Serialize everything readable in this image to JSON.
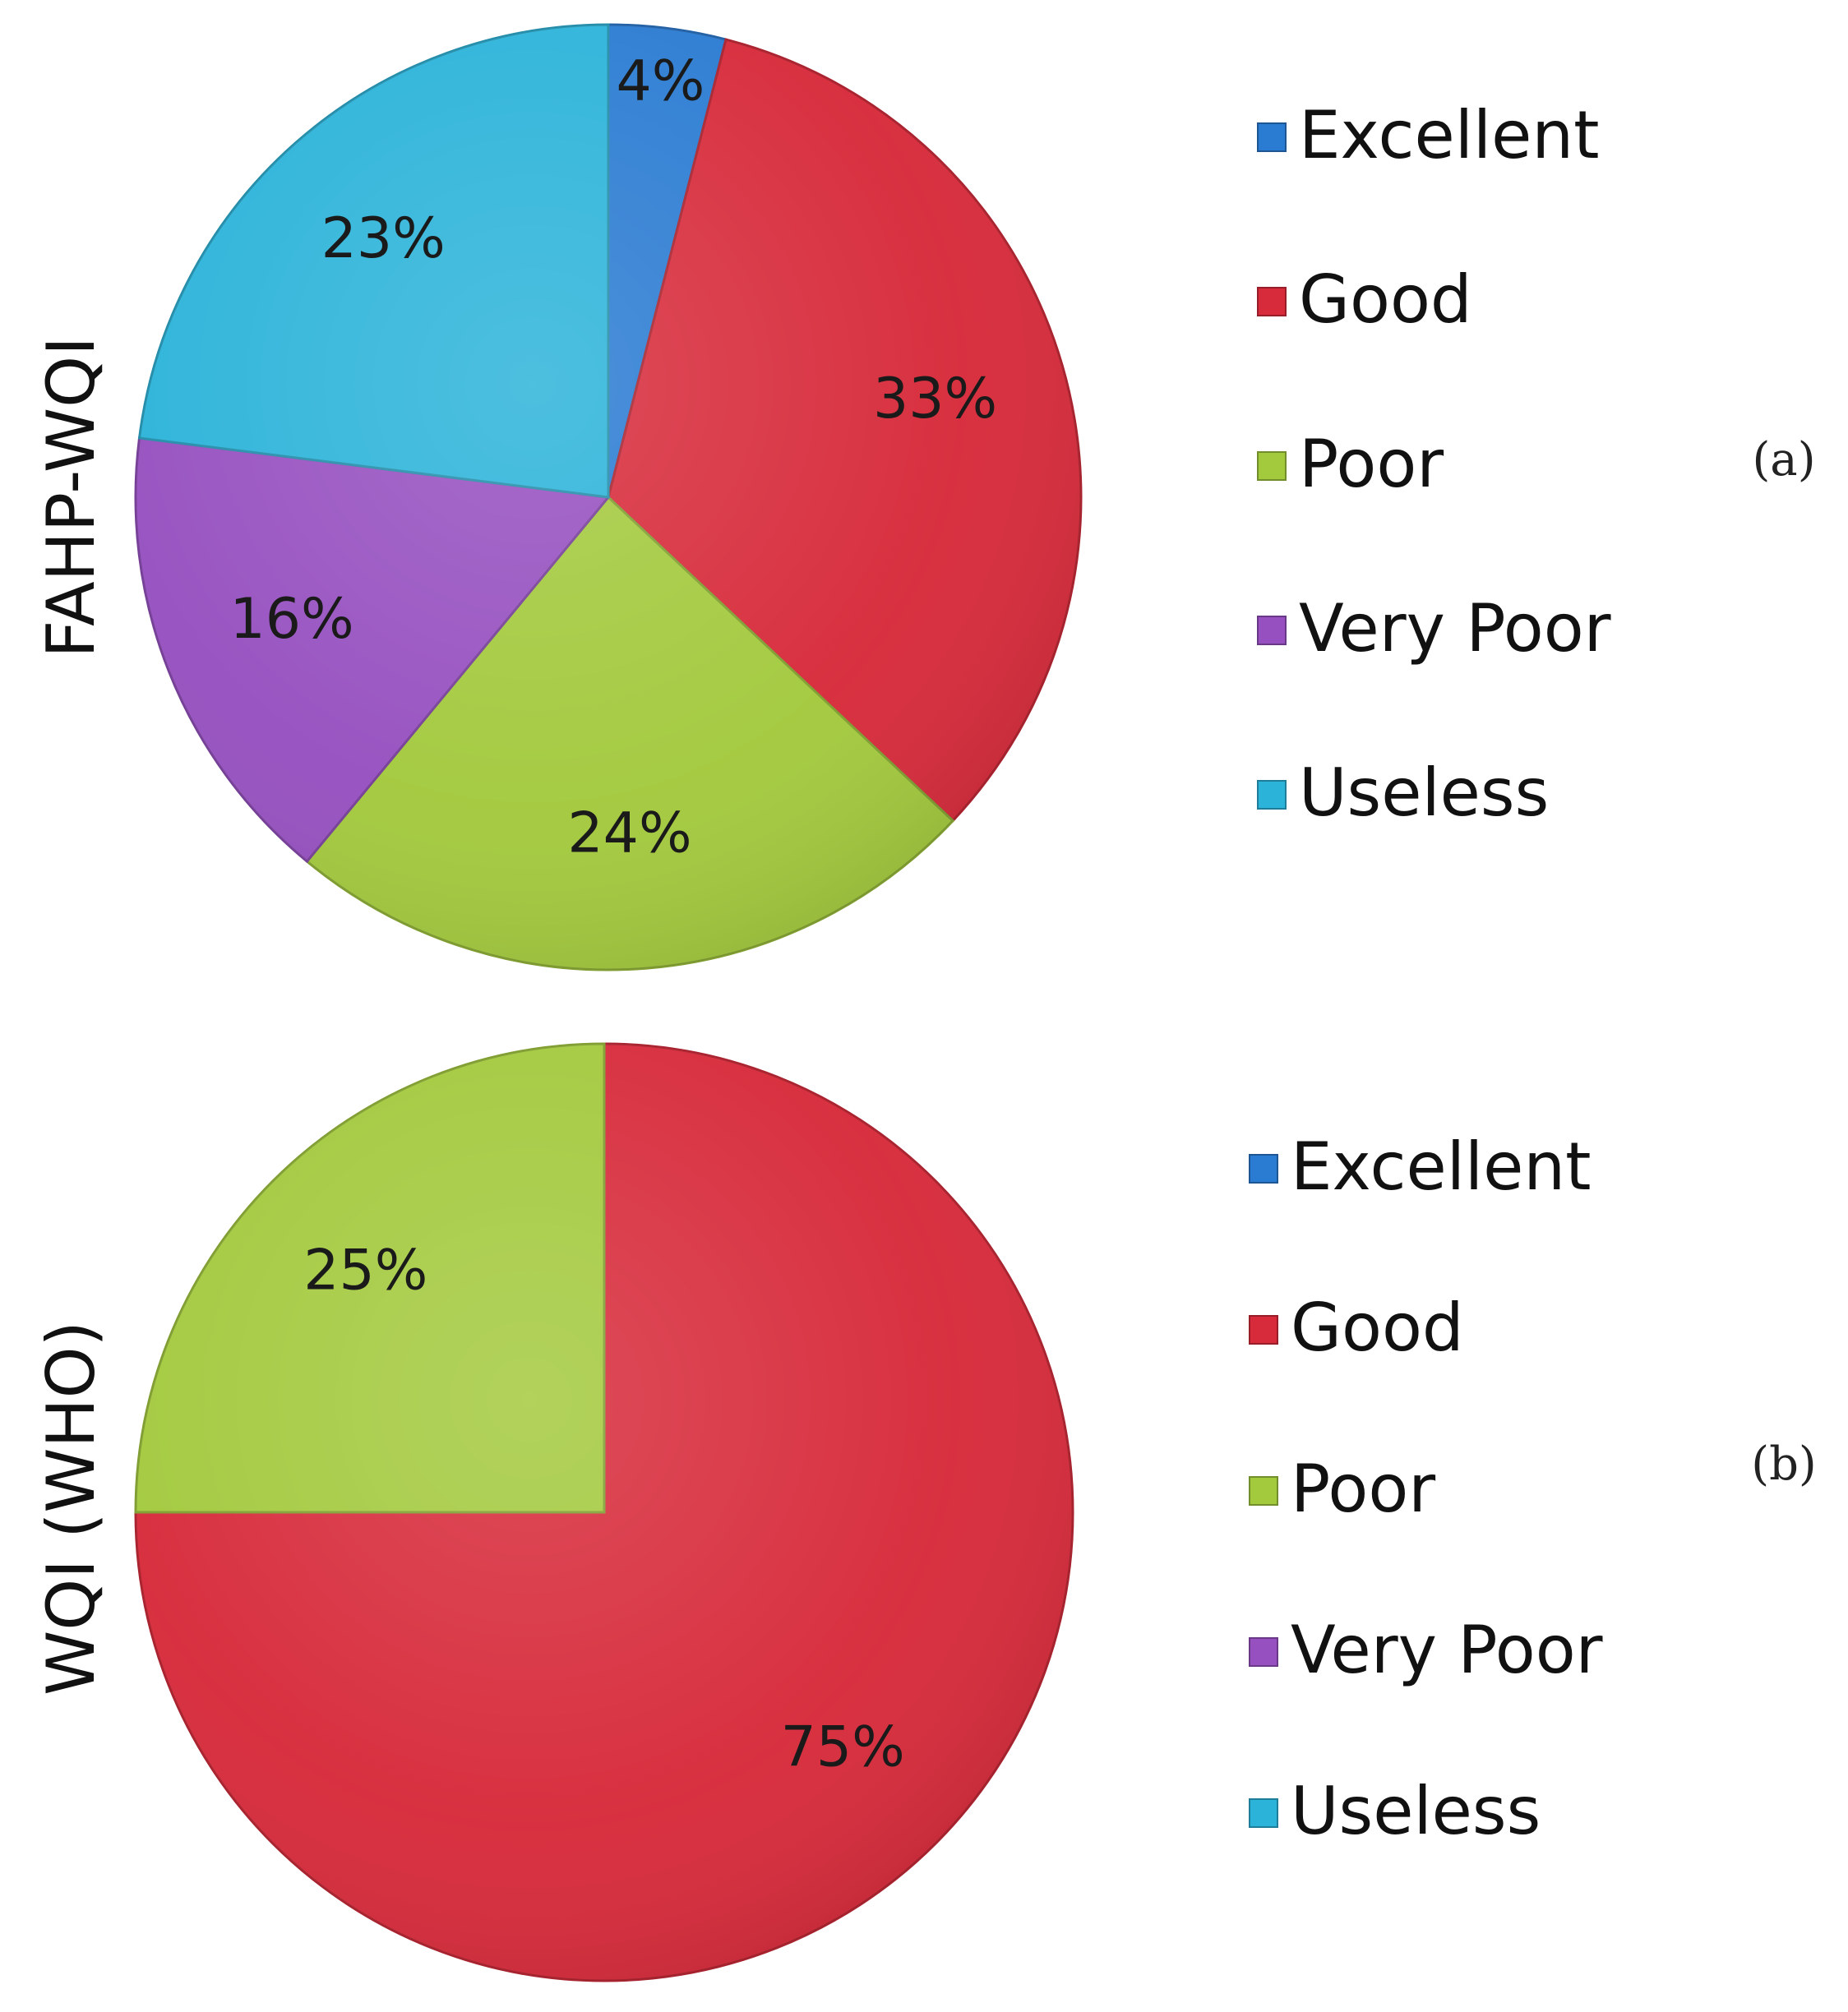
{
  "colors": {
    "Excellent": "#2a7bd2",
    "Good": "#d72a3a",
    "Poor": "#a3c93d",
    "Very Poor": "#9650c0",
    "Useless": "#2bb3d9"
  },
  "chart_data": [
    {
      "type": "pie",
      "ylabel": "FAHP-WQI",
      "panel": "(a)",
      "legend_position": "right",
      "categories": [
        "Excellent",
        "Good",
        "Poor",
        "Very Poor",
        "Useless"
      ],
      "values": [
        4,
        33,
        24,
        16,
        23
      ],
      "labels": [
        "4%",
        "33%",
        "24%",
        "16%",
        "23%"
      ]
    },
    {
      "type": "pie",
      "ylabel": "WQI (WHO)",
      "panel": "(b)",
      "legend_position": "right",
      "categories": [
        "Excellent",
        "Good",
        "Poor",
        "Very Poor",
        "Useless"
      ],
      "values": [
        0,
        75,
        25,
        0,
        0
      ],
      "labels": [
        "",
        "75%",
        "25%",
        "",
        ""
      ]
    }
  ]
}
